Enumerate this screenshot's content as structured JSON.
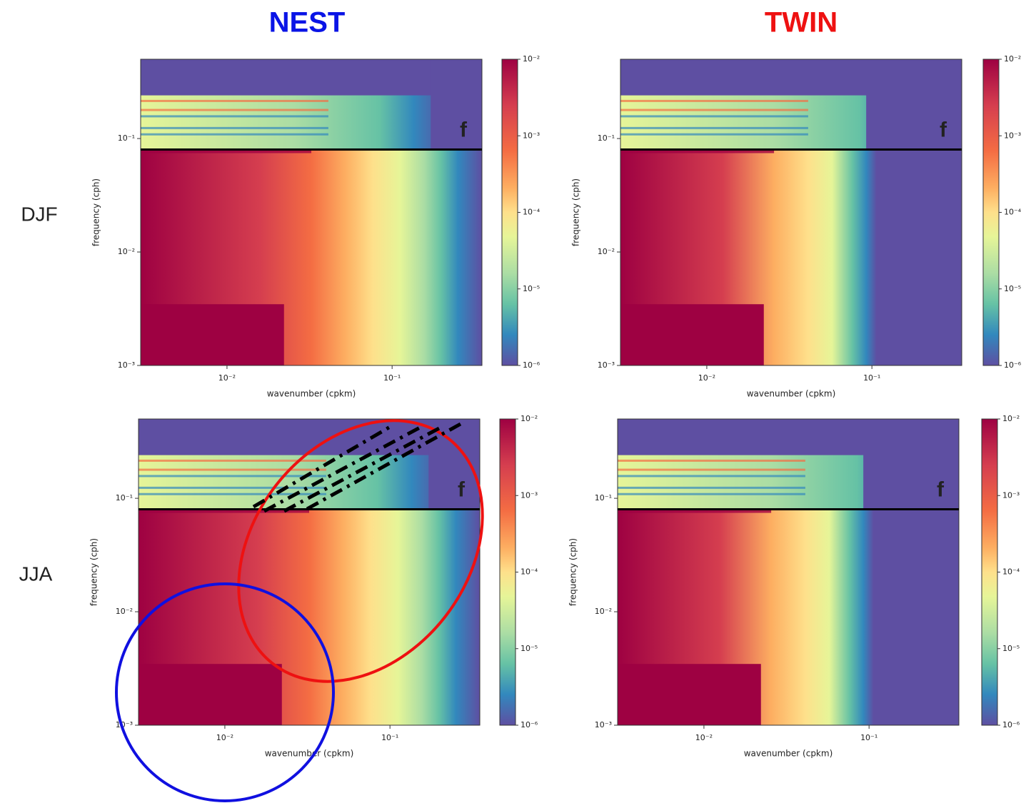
{
  "column_titles": [
    "NEST",
    "TWIN"
  ],
  "row_labels": [
    "DJF",
    "JJA"
  ],
  "chart_data": [
    {
      "type": "heatmap",
      "xlabel": "wavenumber (cpkm)",
      "ylabel": "frequency (cph)",
      "log_x": true,
      "log_y": true,
      "xlim": [
        0.003,
        0.35
      ],
      "ylim": [
        0.001,
        0.5
      ],
      "xticks": [
        {
          "value": 0.01,
          "label": "10⁻²"
        },
        {
          "value": 0.1,
          "label": "10⁻¹"
        }
      ],
      "yticks": [
        {
          "value": 0.001,
          "label": "10⁻³"
        },
        {
          "value": 0.01,
          "label": "10⁻²"
        },
        {
          "value": 0.1,
          "label": "10⁻¹"
        }
      ],
      "hline": 0.08,
      "annotation": "f",
      "colorbar": {
        "lim": [
          1e-06,
          0.01
        ],
        "ticks": [
          {
            "value": 1e-06,
            "label": "10⁻⁶"
          },
          {
            "value": 1e-05,
            "label": "10⁻⁵"
          },
          {
            "value": 0.0001,
            "label": "10⁻⁴"
          },
          {
            "value": 0.001,
            "label": "10⁻³"
          },
          {
            "value": 0.01,
            "label": "10⁻²"
          }
        ]
      }
    },
    {
      "type": "heatmap",
      "xlabel": "wavenumber (cpkm)",
      "ylabel": "frequency (cph)",
      "log_x": true,
      "log_y": true,
      "xlim": [
        0.003,
        0.35
      ],
      "ylim": [
        0.001,
        0.5
      ],
      "xticks": [
        {
          "value": 0.01,
          "label": "10⁻²"
        },
        {
          "value": 0.1,
          "label": "10⁻¹"
        }
      ],
      "yticks": [
        {
          "value": 0.001,
          "label": "10⁻³"
        },
        {
          "value": 0.01,
          "label": "10⁻²"
        },
        {
          "value": 0.1,
          "label": "10⁻¹"
        }
      ],
      "hline": 0.08,
      "annotation": "f",
      "colorbar": {
        "lim": [
          1e-06,
          0.01
        ],
        "ticks": [
          {
            "value": 1e-06,
            "label": "10⁻⁶"
          },
          {
            "value": 1e-05,
            "label": "10⁻⁵"
          },
          {
            "value": 0.0001,
            "label": "10⁻⁴"
          },
          {
            "value": 0.001,
            "label": "10⁻³"
          },
          {
            "value": 0.01,
            "label": "10⁻²"
          }
        ]
      }
    },
    {
      "type": "heatmap",
      "xlabel": "wavenumber (cpkm)",
      "ylabel": "frequency (cph)",
      "log_x": true,
      "log_y": true,
      "xlim": [
        0.003,
        0.35
      ],
      "ylim": [
        0.001,
        0.5
      ],
      "xticks": [
        {
          "value": 0.01,
          "label": "10⁻²"
        },
        {
          "value": 0.1,
          "label": "10⁻¹"
        }
      ],
      "yticks": [
        {
          "value": 0.001,
          "label": "10⁻³"
        },
        {
          "value": 0.01,
          "label": "10⁻²"
        },
        {
          "value": 0.1,
          "label": "10⁻¹"
        }
      ],
      "hline": 0.08,
      "annotation": "f",
      "colorbar": {
        "lim": [
          1e-06,
          0.01
        ],
        "ticks": [
          {
            "value": 1e-06,
            "label": "10⁻⁶"
          },
          {
            "value": 1e-05,
            "label": "10⁻⁵"
          },
          {
            "value": 0.0001,
            "label": "10⁻⁴"
          },
          {
            "value": 0.001,
            "label": "10⁻³"
          },
          {
            "value": 0.01,
            "label": "10⁻²"
          }
        ]
      }
    },
    {
      "type": "heatmap",
      "xlabel": "wavenumber (cpkm)",
      "ylabel": "frequency (cph)",
      "log_x": true,
      "log_y": true,
      "xlim": [
        0.003,
        0.35
      ],
      "ylim": [
        0.001,
        0.5
      ],
      "xticks": [
        {
          "value": 0.01,
          "label": "10⁻²"
        },
        {
          "value": 0.1,
          "label": "10⁻¹"
        }
      ],
      "yticks": [
        {
          "value": 0.001,
          "label": "10⁻³"
        },
        {
          "value": 0.01,
          "label": "10⁻²"
        },
        {
          "value": 0.1,
          "label": "10⁻¹"
        }
      ],
      "hline": 0.08,
      "annotation": "f",
      "colorbar": {
        "lim": [
          1e-06,
          0.01
        ],
        "ticks": [
          {
            "value": 1e-06,
            "label": "10⁻⁶"
          },
          {
            "value": 1e-05,
            "label": "10⁻⁵"
          },
          {
            "value": 0.0001,
            "label": "10⁻⁴"
          },
          {
            "value": 0.001,
            "label": "10⁻³"
          },
          {
            "value": 0.01,
            "label": "10⁻²"
          }
        ]
      }
    }
  ]
}
